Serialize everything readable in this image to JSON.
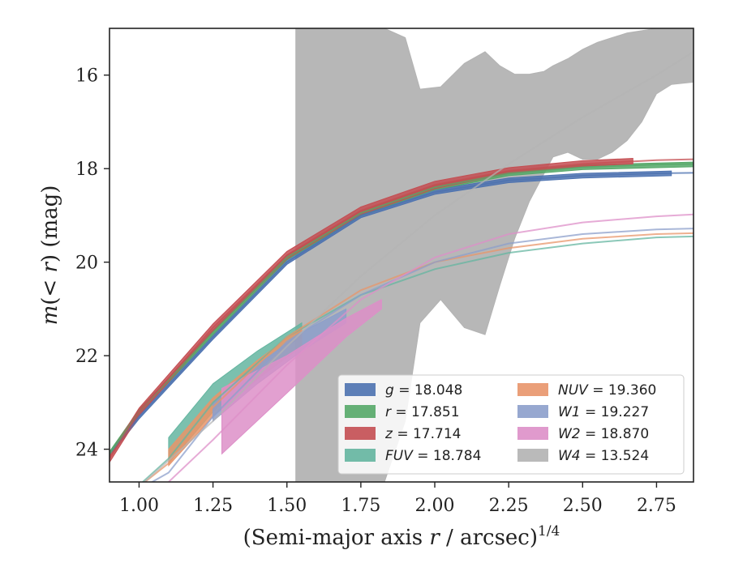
{
  "chart_data": {
    "type": "area",
    "title": "",
    "xlabel": "(Semi-major axis r / arcsec)^{1/4}",
    "ylabel": "m(< r) (mag)",
    "xlim": [
      0.9,
      2.875
    ],
    "ylim": [
      24.7,
      15.0
    ],
    "y_inverted": true,
    "grid": false,
    "legend_position": "lower-right",
    "x_ticks": [
      1.0,
      1.25,
      1.5,
      1.75,
      2.0,
      2.25,
      2.5,
      2.75
    ],
    "x_tick_labels": [
      "1.00",
      "1.25",
      "1.50",
      "1.75",
      "2.00",
      "2.25",
      "2.50",
      "2.75"
    ],
    "y_ticks": [
      16,
      18,
      20,
      22,
      24
    ],
    "y_tick_labels": [
      "16",
      "18",
      "20",
      "22",
      "24"
    ],
    "series": [
      {
        "name": "g = 18.048",
        "name_parts": [
          "g",
          " = 18.048"
        ],
        "color": "#4c72b0",
        "model": {
          "x": [
            0.9,
            1.0,
            1.25,
            1.5,
            1.75,
            2.0,
            2.25,
            2.5,
            2.75,
            2.875
          ],
          "y": [
            24.1,
            23.3,
            21.6,
            20.0,
            19.0,
            18.5,
            18.25,
            18.15,
            18.1,
            18.09
          ]
        },
        "band_x": [
          0.9,
          1.0,
          1.25,
          1.5,
          1.75,
          2.0,
          2.25,
          2.5,
          2.8
        ],
        "band_low": [
          24.15,
          23.35,
          21.65,
          20.05,
          19.05,
          18.55,
          18.3,
          18.2,
          18.15
        ],
        "band_high": [
          24.05,
          23.25,
          21.55,
          19.95,
          18.95,
          18.45,
          18.2,
          18.1,
          18.05
        ]
      },
      {
        "name": "r = 17.851",
        "name_parts": [
          "r",
          " = 17.851"
        ],
        "color": "#55a868",
        "model": {
          "x": [
            0.9,
            1.0,
            1.25,
            1.5,
            1.75,
            2.0,
            2.25,
            2.5,
            2.75,
            2.875
          ],
          "y": [
            24.1,
            23.2,
            21.5,
            19.9,
            18.95,
            18.4,
            18.1,
            17.97,
            17.91,
            17.9
          ]
        },
        "band_x": [
          0.9,
          1.0,
          1.25,
          1.5,
          1.75,
          2.0,
          2.25,
          2.5,
          2.875
        ],
        "band_low": [
          24.15,
          23.25,
          21.55,
          19.95,
          19.0,
          18.45,
          18.15,
          18.02,
          17.96
        ],
        "band_high": [
          24.05,
          23.15,
          21.45,
          19.85,
          18.9,
          18.35,
          18.05,
          17.92,
          17.86
        ]
      },
      {
        "name": "z = 17.714",
        "name_parts": [
          "z",
          " = 17.714"
        ],
        "color": "#c44e52",
        "model": {
          "x": [
            0.9,
            1.0,
            1.25,
            1.5,
            1.75,
            2.0,
            2.25,
            2.5,
            2.75,
            2.875
          ],
          "y": [
            24.2,
            23.2,
            21.4,
            19.85,
            18.9,
            18.35,
            18.05,
            17.9,
            17.82,
            17.8
          ]
        },
        "band_x": [
          0.9,
          1.0,
          1.25,
          1.5,
          1.75,
          2.0,
          2.25,
          2.5,
          2.67
        ],
        "band_low": [
          24.28,
          23.28,
          21.48,
          19.93,
          18.98,
          18.43,
          18.1,
          17.95,
          17.9
        ],
        "band_high": [
          24.12,
          23.12,
          21.32,
          19.77,
          18.82,
          18.27,
          17.98,
          17.83,
          17.78
        ]
      },
      {
        "name": "FUV = 18.784",
        "name_parts": [
          "FUV",
          " = 18.784"
        ],
        "italic_name": true,
        "color": "#64b5a0",
        "model": {
          "x": [
            0.96,
            1.1,
            1.25,
            1.5,
            1.75,
            2.0,
            2.25,
            2.5,
            2.75,
            2.875
          ],
          "y": [
            25.0,
            24.2,
            23.0,
            21.6,
            20.7,
            20.15,
            19.8,
            19.6,
            19.47,
            19.45
          ]
        },
        "band_x": [
          1.1,
          1.25,
          1.4,
          1.5,
          1.55
        ],
        "band_low": [
          24.3,
          23.2,
          22.3,
          21.8,
          21.6
        ],
        "band_high": [
          23.75,
          22.6,
          21.9,
          21.5,
          21.3
        ]
      },
      {
        "name": "NUV = 19.360",
        "name_parts": [
          "NUV",
          " = 19.360"
        ],
        "italic_name": true,
        "color": "#e8956a",
        "model": {
          "x": [
            0.96,
            1.1,
            1.25,
            1.5,
            1.75,
            2.0,
            2.25,
            2.5,
            2.75,
            2.875
          ],
          "y": [
            25.0,
            24.3,
            23.1,
            21.6,
            20.6,
            20.0,
            19.7,
            19.5,
            19.4,
            19.38
          ]
        },
        "band_x": [
          1.1,
          1.25,
          1.4,
          1.55
        ],
        "band_low": [
          24.35,
          23.3,
          22.5,
          21.8
        ],
        "band_high": [
          24.0,
          22.9,
          22.1,
          21.4
        ]
      },
      {
        "name": "W1 = 19.227",
        "name_parts": [
          "W1",
          " = 19.227"
        ],
        "italic_name": true,
        "color": "#8c9fcb",
        "model": {
          "x": [
            0.96,
            1.1,
            1.25,
            1.5,
            1.75,
            2.0,
            2.25,
            2.5,
            2.75,
            2.875
          ],
          "y": [
            25.0,
            24.5,
            23.3,
            21.7,
            20.7,
            20.0,
            19.6,
            19.4,
            19.3,
            19.28
          ]
        },
        "band_x": [
          1.25,
          1.4,
          1.55,
          1.7
        ],
        "band_low": [
          23.4,
          22.6,
          21.9,
          21.3
        ],
        "band_high": [
          23.0,
          22.2,
          21.5,
          21.0
        ]
      },
      {
        "name": "W2 = 18.870",
        "name_parts": [
          "W2",
          " = 18.870"
        ],
        "italic_name": true,
        "color": "#dd8fc8",
        "model": {
          "x": [
            1.05,
            1.25,
            1.5,
            1.75,
            2.0,
            2.25,
            2.5,
            2.75,
            2.875
          ],
          "y": [
            25.0,
            23.8,
            22.2,
            20.8,
            19.9,
            19.4,
            19.15,
            19.02,
            18.98
          ]
        },
        "band_x": [
          1.28,
          1.5,
          1.7,
          1.82
        ],
        "band_low": [
          24.1,
          22.8,
          21.6,
          21.0
        ],
        "band_high": [
          22.7,
          22.0,
          21.2,
          20.8
        ]
      },
      {
        "name": "W4 = 13.524",
        "name_parts": [
          "W4",
          " = 13.524"
        ],
        "italic_name": true,
        "color": "#b3b3b3",
        "model": {
          "x": [
            0.9,
            1.0,
            1.25,
            1.5,
            1.75,
            2.0,
            2.25,
            2.5,
            2.75,
            2.875
          ],
          "y": [
            25.4,
            24.8,
            23.4,
            21.8,
            20.3,
            19.0,
            17.9,
            16.9,
            16.0,
            15.5
          ]
        },
        "band_x": [
          1.53,
          1.53,
          1.6,
          1.7,
          1.8,
          1.83,
          1.9,
          1.95,
          2.02,
          2.1,
          2.17,
          2.22,
          2.27,
          2.32,
          2.37,
          2.4,
          2.45,
          2.5,
          2.55,
          2.6,
          2.65,
          2.7,
          2.75,
          2.8,
          2.875
        ],
        "band_low": [
          24.7,
          24.7,
          24.7,
          24.7,
          24.7,
          24.7,
          23.4,
          21.3,
          20.8,
          21.4,
          21.55,
          20.5,
          19.5,
          18.7,
          18.1,
          17.75,
          17.65,
          17.8,
          17.8,
          17.65,
          17.4,
          17.0,
          16.4,
          16.2,
          16.15
        ],
        "band_high": [
          15.0,
          15.0,
          15.0,
          15.0,
          15.0,
          15.0,
          15.2,
          16.3,
          16.25,
          15.75,
          15.5,
          15.8,
          15.98,
          15.98,
          15.92,
          15.8,
          15.65,
          15.45,
          15.3,
          15.2,
          15.1,
          15.05,
          15.0,
          15.0,
          15.0
        ]
      }
    ]
  }
}
